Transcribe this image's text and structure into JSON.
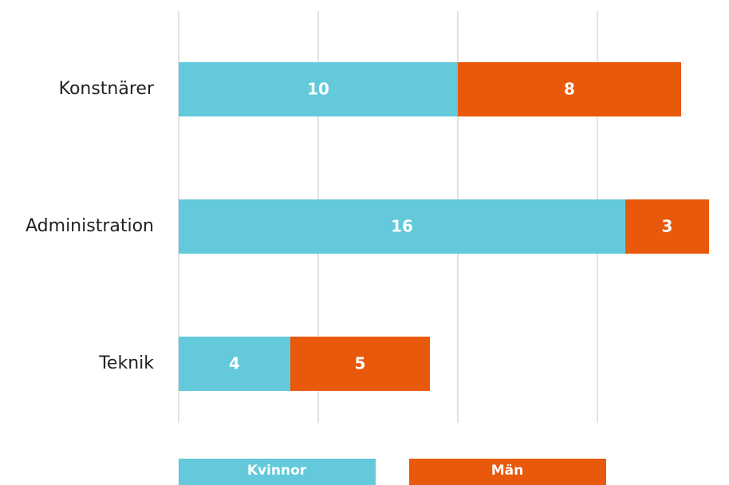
{
  "chart_data": {
    "type": "stacked_barh",
    "categories": [
      "Konstnärer",
      "Administration",
      "Teknik"
    ],
    "series": [
      {
        "name": "Kvinnor",
        "color": "#63c9db",
        "values": [
          10,
          16,
          4
        ]
      },
      {
        "name": "Män",
        "color": "#e8590c",
        "values": [
          8,
          3,
          5
        ]
      }
    ],
    "xlim": [
      0,
      19
    ],
    "xticks": [
      0,
      5,
      10,
      15
    ],
    "grid": true,
    "legend": "bottom"
  }
}
